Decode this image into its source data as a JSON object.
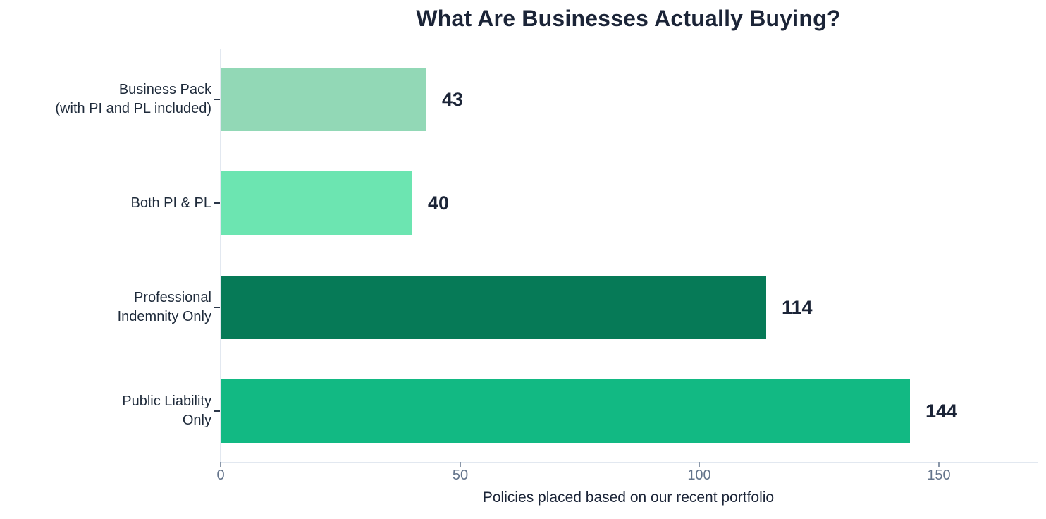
{
  "chart_data": {
    "type": "bar",
    "orientation": "horizontal",
    "title": "What Are Businesses Actually Buying?",
    "categories": [
      "Business Pack (with PI and PL included)",
      "Both PI & PL",
      "Professional Indemnity Only",
      "Public Liability Only"
    ],
    "category_lines": [
      [
        "Business Pack",
        "(with PI and PL included)"
      ],
      [
        "Both PI & PL"
      ],
      [
        "Professional",
        "Indemnity Only"
      ],
      [
        "Public Liability",
        "Only"
      ]
    ],
    "values": [
      43,
      40,
      114,
      144
    ],
    "value_labels": [
      "43",
      "40",
      "114",
      "144"
    ],
    "bar_colors": [
      "#92d8b6",
      "#6ce5b1",
      "#067a57",
      "#12b983"
    ],
    "xlabel": "Policies placed based on our recent portfolio",
    "x_ticks": [
      0,
      50,
      100,
      150
    ],
    "xlim": [
      0,
      170
    ],
    "grid": false,
    "legend": false,
    "colors": {
      "title_text": "#1b2437",
      "category_text": "#1e2a3a",
      "value_text": "#1b2437",
      "tick_text": "#64748b",
      "axis_line": "#e2e8f0"
    }
  }
}
